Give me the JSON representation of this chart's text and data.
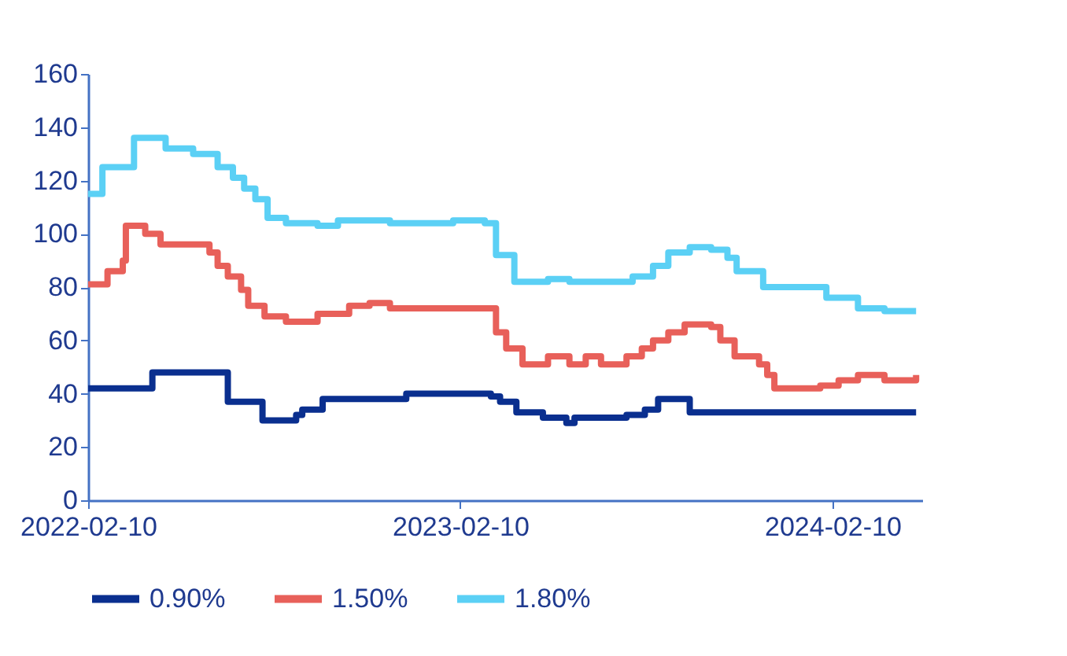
{
  "chart_data": {
    "type": "step",
    "legend": "bottom",
    "xlim": [
      "2022-02-10",
      "2024-05-08"
    ],
    "xticks": [
      {
        "value": "2022-02-10",
        "label": "2022-02-10"
      },
      {
        "value": "2023-02-10",
        "label": "2023-02-10"
      },
      {
        "value": "2024-02-10",
        "label": "2024-02-10"
      }
    ],
    "ylim": [
      0,
      160
    ],
    "yticks": [
      0,
      20,
      40,
      60,
      80,
      100,
      120,
      140,
      160
    ],
    "grid": false,
    "series": [
      {
        "name": "0.90%",
        "color": "#0a2f8f",
        "x": [
          "2022-02-10",
          "2022-04-14",
          "2022-06-27",
          "2022-07-31",
          "2022-09-02",
          "2022-09-08",
          "2022-09-28",
          "2022-12-19",
          "2023-03-12",
          "2023-03-21",
          "2023-04-06",
          "2023-05-02",
          "2023-05-25",
          "2023-06-02",
          "2023-07-23",
          "2023-08-10",
          "2023-08-23",
          "2023-09-23",
          "2024-05-02"
        ],
        "values": [
          42,
          48,
          37,
          30,
          32,
          34,
          38,
          40,
          39,
          37,
          33,
          31,
          29,
          31,
          32,
          34,
          38,
          33,
          33
        ]
      },
      {
        "name": "1.50%",
        "color": "#e8605a",
        "x": [
          "2022-02-10",
          "2022-03-01",
          "2022-03-16",
          "2022-03-19",
          "2022-04-07",
          "2022-04-22",
          "2022-06-09",
          "2022-06-17",
          "2022-06-27",
          "2022-07-10",
          "2022-07-17",
          "2022-08-02",
          "2022-08-23",
          "2022-09-23",
          "2022-10-24",
          "2022-11-13",
          "2022-12-03",
          "2023-03-09",
          "2023-03-17",
          "2023-03-27",
          "2023-04-12",
          "2023-05-07",
          "2023-05-28",
          "2023-06-13",
          "2023-06-28",
          "2023-07-23",
          "2023-08-07",
          "2023-08-18",
          "2023-09-02",
          "2023-09-18",
          "2023-10-14",
          "2023-10-23",
          "2023-11-06",
          "2023-11-30",
          "2023-12-08",
          "2023-12-15",
          "2024-01-29",
          "2024-02-16",
          "2024-03-06",
          "2024-04-01",
          "2024-05-02"
        ],
        "values": [
          81,
          86,
          90,
          103,
          100,
          96,
          93,
          88,
          84,
          79,
          73,
          69,
          67,
          70,
          73,
          74,
          72,
          72,
          63,
          57,
          51,
          54,
          51,
          54,
          51,
          54,
          57,
          60,
          63,
          66,
          65,
          60,
          54,
          51,
          47,
          42,
          43,
          45,
          47,
          45,
          47
        ]
      },
      {
        "name": "1.80%",
        "color": "#5bd0f5",
        "x": [
          "2022-02-10",
          "2022-02-24",
          "2022-03-27",
          "2022-04-27",
          "2022-05-24",
          "2022-06-17",
          "2022-07-02",
          "2022-07-13",
          "2022-07-24",
          "2022-08-05",
          "2022-08-23",
          "2022-09-23",
          "2022-10-13",
          "2022-12-03",
          "2023-02-03",
          "2023-03-06",
          "2023-03-17",
          "2023-04-04",
          "2023-05-07",
          "2023-05-28",
          "2023-07-29",
          "2023-08-18",
          "2023-09-02",
          "2023-09-23",
          "2023-10-14",
          "2023-10-30",
          "2023-11-08",
          "2023-11-29",
          "2023-12-04",
          "2024-01-24",
          "2024-02-04",
          "2024-03-01",
          "2024-03-06",
          "2024-04-01",
          "2024-05-02"
        ],
        "values": [
          115,
          125,
          136,
          132,
          130,
          125,
          121,
          117,
          113,
          106,
          104,
          103,
          105,
          104,
          105,
          104,
          92,
          82,
          83,
          82,
          84,
          88,
          93,
          95,
          94,
          91,
          86,
          86,
          80,
          80,
          76,
          76,
          72,
          71,
          71
        ]
      }
    ]
  }
}
